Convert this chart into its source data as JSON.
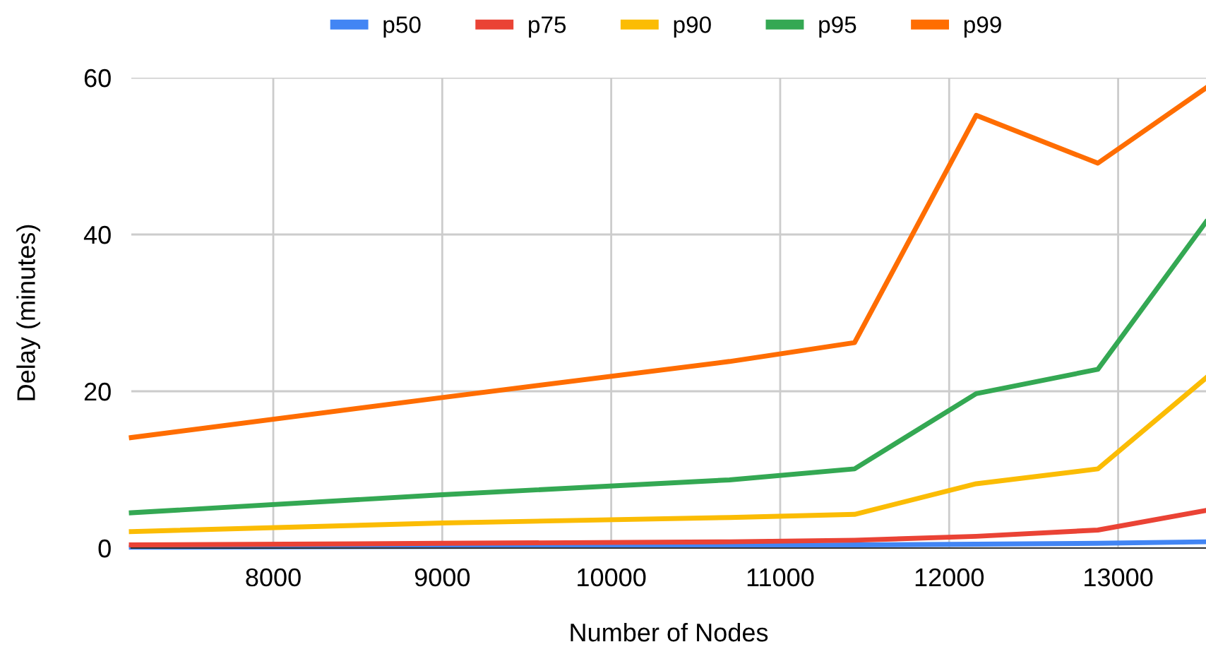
{
  "chart_data": {
    "type": "line",
    "xlabel": "Number of Nodes",
    "ylabel": "Delay (minutes)",
    "x": [
      7160,
      9000,
      10700,
      11440,
      12160,
      12880,
      13520
    ],
    "series": [
      {
        "name": "p50",
        "color": "#4285f4",
        "values": [
          0.1,
          0.2,
          0.3,
          0.4,
          0.5,
          0.6,
          0.8
        ]
      },
      {
        "name": "p75",
        "color": "#ea4335",
        "values": [
          0.4,
          0.6,
          0.8,
          1.0,
          1.5,
          2.3,
          4.8
        ]
      },
      {
        "name": "p90",
        "color": "#fbbc04",
        "values": [
          2.1,
          3.2,
          3.9,
          4.3,
          8.2,
          10.1,
          21.7
        ]
      },
      {
        "name": "p95",
        "color": "#34a853",
        "values": [
          4.5,
          6.8,
          8.7,
          10.1,
          19.7,
          22.8,
          41.6
        ]
      },
      {
        "name": "p99",
        "color": "#ff6d01",
        "values": [
          14.1,
          19.2,
          23.8,
          26.2,
          55.2,
          49.1,
          58.7
        ]
      }
    ],
    "xlim": [
      7160,
      13520
    ],
    "xticks": [
      8000,
      9000,
      10000,
      11000,
      12000,
      13000
    ],
    "ylim": [
      0,
      60
    ],
    "yticks": [
      0,
      20,
      40,
      60
    ],
    "grid": true,
    "legend": "top",
    "line_style": "solid",
    "marker": "none"
  }
}
